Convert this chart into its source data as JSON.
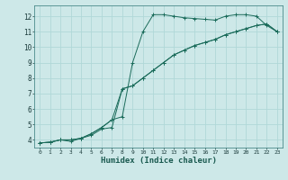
{
  "xlabel": "Humidex (Indice chaleur)",
  "xlim": [
    -0.5,
    23.5
  ],
  "ylim": [
    3.5,
    12.7
  ],
  "xticks": [
    0,
    1,
    2,
    3,
    4,
    5,
    6,
    7,
    8,
    9,
    10,
    11,
    12,
    13,
    14,
    15,
    16,
    17,
    18,
    19,
    20,
    21,
    22,
    23
  ],
  "yticks": [
    4,
    5,
    6,
    7,
    8,
    9,
    10,
    11,
    12
  ],
  "background_color": "#cde8e8",
  "line_color": "#1a6b5a",
  "grid_color": "#b0d8d8",
  "lines": [
    {
      "x": [
        0,
        1,
        2,
        3,
        4,
        5,
        6,
        7,
        8,
        9,
        10,
        11,
        12,
        13,
        14,
        15,
        16,
        17,
        18,
        19,
        20,
        21,
        22,
        23
      ],
      "y": [
        3.8,
        3.85,
        4.0,
        4.0,
        4.1,
        4.4,
        4.8,
        5.3,
        5.5,
        9.0,
        11.0,
        12.1,
        12.1,
        12.0,
        11.9,
        11.85,
        11.8,
        11.75,
        12.0,
        12.1,
        12.1,
        12.0,
        11.4,
        11.0
      ]
    },
    {
      "x": [
        0,
        1,
        2,
        3,
        4,
        5,
        6,
        7,
        8,
        9,
        10,
        11,
        12,
        13,
        14,
        15,
        16,
        17,
        18,
        19,
        20,
        21,
        22,
        23
      ],
      "y": [
        3.8,
        3.85,
        4.0,
        4.0,
        4.1,
        4.4,
        4.8,
        5.3,
        7.3,
        7.5,
        8.0,
        8.5,
        9.0,
        9.5,
        9.8,
        10.1,
        10.3,
        10.5,
        10.8,
        11.0,
        11.2,
        11.4,
        11.5,
        11.0
      ]
    },
    {
      "x": [
        0,
        1,
        2,
        3,
        4,
        5,
        6,
        7,
        8,
        9,
        10,
        11,
        12,
        13,
        14,
        15,
        16,
        17,
        18,
        19,
        20,
        21,
        22,
        23
      ],
      "y": [
        3.8,
        3.85,
        4.0,
        3.9,
        4.1,
        4.3,
        4.7,
        4.8,
        7.3,
        7.5,
        8.0,
        8.5,
        9.0,
        9.5,
        9.8,
        10.1,
        10.3,
        10.5,
        10.8,
        11.0,
        11.2,
        11.4,
        11.5,
        11.0
      ]
    }
  ]
}
